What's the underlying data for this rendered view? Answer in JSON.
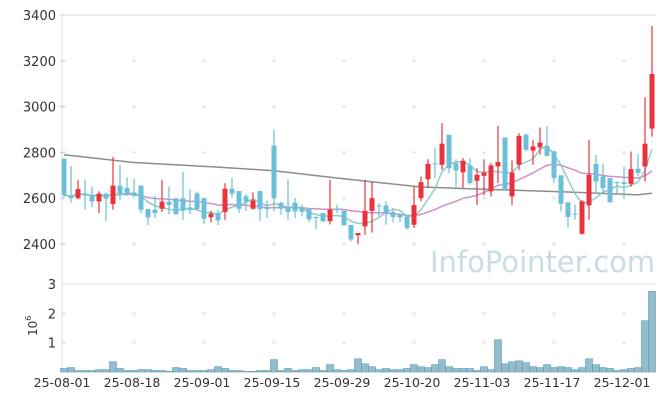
{
  "chart_data": {
    "type": "candlestick",
    "watermark": "InfoPointer.com",
    "colors": {
      "up": "#e8323c",
      "down": "#6bbfd8",
      "ma_short": "#7cc6b6",
      "ma_mid": "#c77dbf",
      "ma_long": "#8c8c8c",
      "volume": "#93bccc",
      "volume_edge": "#5d9bb0"
    },
    "price_axis": {
      "ylim": [
        2300,
        3400
      ],
      "ticks": [
        "2400",
        "2600",
        "2800",
        "3000",
        "3200",
        "3400"
      ]
    },
    "volume_axis": {
      "label": "10",
      "label_exponent": "6",
      "ylim": [
        0,
        3
      ],
      "ticks": [
        "1",
        "2",
        "3"
      ]
    },
    "x_ticks": [
      {
        "index": 0,
        "label": "25-08-01"
      },
      {
        "index": 10,
        "label": "25-08-18"
      },
      {
        "index": 20,
        "label": "25-09-01"
      },
      {
        "index": 30,
        "label": "25-09-15"
      },
      {
        "index": 40,
        "label": "25-09-29"
      },
      {
        "index": 50,
        "label": "25-10-20"
      },
      {
        "index": 60,
        "label": "25-11-03"
      },
      {
        "index": 70,
        "label": "25-11-17"
      },
      {
        "index": 80,
        "label": "25-12-01"
      }
    ],
    "ohlc": [
      [
        2772,
        2775,
        2605,
        2615
      ],
      [
        2610,
        2740,
        2580,
        2600
      ],
      [
        2600,
        2680,
        2595,
        2640
      ],
      [
        2620,
        2680,
        2550,
        2612
      ],
      [
        2615,
        2650,
        2560,
        2586
      ],
      [
        2586,
        2630,
        2535,
        2620
      ],
      [
        2620,
        2625,
        2500,
        2598
      ],
      [
        2575,
        2780,
        2550,
        2655
      ],
      [
        2655,
        2745,
        2590,
        2620
      ],
      [
        2645,
        2690,
        2610,
        2620
      ],
      [
        2625,
        2685,
        2605,
        2610
      ],
      [
        2655,
        2655,
        2535,
        2550
      ],
      [
        2553,
        2553,
        2483,
        2516
      ],
      [
        2550,
        2610,
        2513,
        2535
      ],
      [
        2554,
        2680,
        2540,
        2585
      ],
      [
        2585,
        2650,
        2530,
        2570
      ],
      [
        2600,
        2600,
        2528,
        2530
      ],
      [
        2600,
        2715,
        2506,
        2545
      ],
      [
        2560,
        2640,
        2530,
        2548
      ],
      [
        2620,
        2630,
        2545,
        2553
      ],
      [
        2600,
        2600,
        2488,
        2510
      ],
      [
        2517,
        2545,
        2495,
        2532
      ],
      [
        2535,
        2550,
        2483,
        2503
      ],
      [
        2540,
        2665,
        2506,
        2641
      ],
      [
        2641,
        2688,
        2600,
        2620
      ],
      [
        2631,
        2631,
        2535,
        2554
      ],
      [
        2608,
        2618,
        2543,
        2585
      ],
      [
        2554,
        2625,
        2550,
        2590
      ],
      [
        2631,
        2631,
        2500,
        2553
      ],
      [
        2557,
        2590,
        2513,
        2552
      ],
      [
        2830,
        2900,
        2543,
        2600
      ],
      [
        2580,
        2585,
        2528,
        2554
      ],
      [
        2564,
        2680,
        2506,
        2540
      ],
      [
        2580,
        2600,
        2513,
        2543
      ],
      [
        2554,
        2572,
        2520,
        2541
      ],
      [
        2554,
        2554,
        2495,
        2508
      ],
      [
        2518,
        2520,
        2465,
        2515
      ],
      [
        2535,
        2535,
        2495,
        2499
      ],
      [
        2500,
        2680,
        2485,
        2550
      ],
      [
        2555,
        2572,
        2535,
        2550
      ],
      [
        2545,
        2545,
        2480,
        2482
      ],
      [
        2483,
        2483,
        2410,
        2420
      ],
      [
        2438,
        2448,
        2400,
        2448
      ],
      [
        2477,
        2680,
        2440,
        2545
      ],
      [
        2545,
        2670,
        2450,
        2600
      ],
      [
        2568,
        2578,
        2520,
        2565
      ],
      [
        2568,
        2586,
        2484,
        2535
      ],
      [
        2540,
        2557,
        2495,
        2518
      ],
      [
        2530,
        2535,
        2495,
        2516
      ],
      [
        2520,
        2528,
        2463,
        2470
      ],
      [
        2484,
        2650,
        2470,
        2570
      ],
      [
        2600,
        2695,
        2586,
        2670
      ],
      [
        2683,
        2770,
        2645,
        2750
      ],
      [
        2752,
        2820,
        2688,
        2750
      ],
      [
        2746,
        2928,
        2724,
        2838
      ],
      [
        2877,
        2877,
        2709,
        2731
      ],
      [
        2753,
        2770,
        2650,
        2721
      ],
      [
        2713,
        2775,
        2645,
        2763
      ],
      [
        2743,
        2775,
        2659,
        2666
      ],
      [
        2676,
        2731,
        2570,
        2702
      ],
      [
        2698,
        2770,
        2613,
        2712
      ],
      [
        2630,
        2753,
        2607,
        2743
      ],
      [
        2739,
        2916,
        2666,
        2758
      ],
      [
        2865,
        2865,
        2634,
        2637
      ],
      [
        2608,
        2765,
        2570,
        2712
      ],
      [
        2746,
        2884,
        2724,
        2872
      ],
      [
        2877,
        2884,
        2805,
        2812
      ],
      [
        2808,
        2855,
        2746,
        2826
      ],
      [
        2822,
        2909,
        2790,
        2843
      ],
      [
        2829,
        2916,
        2782,
        2785
      ],
      [
        2805,
        2805,
        2666,
        2688
      ],
      [
        2700,
        2700,
        2542,
        2576
      ],
      [
        2582,
        2582,
        2473,
        2518
      ],
      [
        2532,
        2572,
        2506,
        2530
      ],
      [
        2445,
        2593,
        2440,
        2586
      ],
      [
        2569,
        2855,
        2506,
        2702
      ],
      [
        2750,
        2790,
        2622,
        2673
      ],
      [
        2695,
        2750,
        2622,
        2644
      ],
      [
        2688,
        2688,
        2582,
        2582
      ],
      [
        2670,
        2673,
        2622,
        2668
      ],
      [
        2670,
        2739,
        2600,
        2662
      ],
      [
        2663,
        2804,
        2650,
        2727
      ],
      [
        2729,
        2794,
        2695,
        2710
      ],
      [
        2739,
        3041,
        2673,
        2838
      ],
      [
        2904,
        3352,
        2869,
        3143
      ]
    ],
    "ma_long": [
      {
        "index": 0,
        "value": 2790
      },
      {
        "index": 10,
        "value": 2756
      },
      {
        "index": 22,
        "value": 2736
      },
      {
        "index": 30,
        "value": 2720
      },
      {
        "index": 39,
        "value": 2688
      },
      {
        "index": 51,
        "value": 2649
      },
      {
        "index": 62,
        "value": 2637
      },
      {
        "index": 72,
        "value": 2627
      },
      {
        "index": 82,
        "value": 2615
      },
      {
        "index": 84,
        "value": 2622
      }
    ],
    "volume_millions": [
      0.12,
      0.15,
      0.05,
      0.05,
      0.05,
      0.08,
      0.08,
      0.35,
      0.12,
      0.05,
      0.05,
      0.08,
      0.08,
      0.05,
      0.05,
      0.02,
      0.15,
      0.12,
      0.05,
      0.05,
      0.05,
      0.08,
      0.18,
      0.12,
      0.05,
      0.05,
      0.02,
      0.02,
      0.05,
      0.05,
      0.42,
      0.05,
      0.12,
      0.05,
      0.08,
      0.08,
      0.15,
      0.05,
      0.25,
      0.08,
      0.05,
      0.08,
      0.45,
      0.28,
      0.18,
      0.08,
      0.12,
      0.08,
      0.08,
      0.12,
      0.25,
      0.18,
      0.15,
      0.25,
      0.42,
      0.18,
      0.12,
      0.12,
      0.12,
      0.05,
      0.18,
      0.08,
      1.1,
      0.28,
      0.35,
      0.38,
      0.32,
      0.18,
      0.15,
      0.25,
      0.15,
      0.18,
      0.15,
      0.08,
      0.15,
      0.45,
      0.25,
      0.15,
      0.12,
      0.05,
      0.08,
      0.12,
      0.15,
      1.75,
      2.75
    ]
  }
}
